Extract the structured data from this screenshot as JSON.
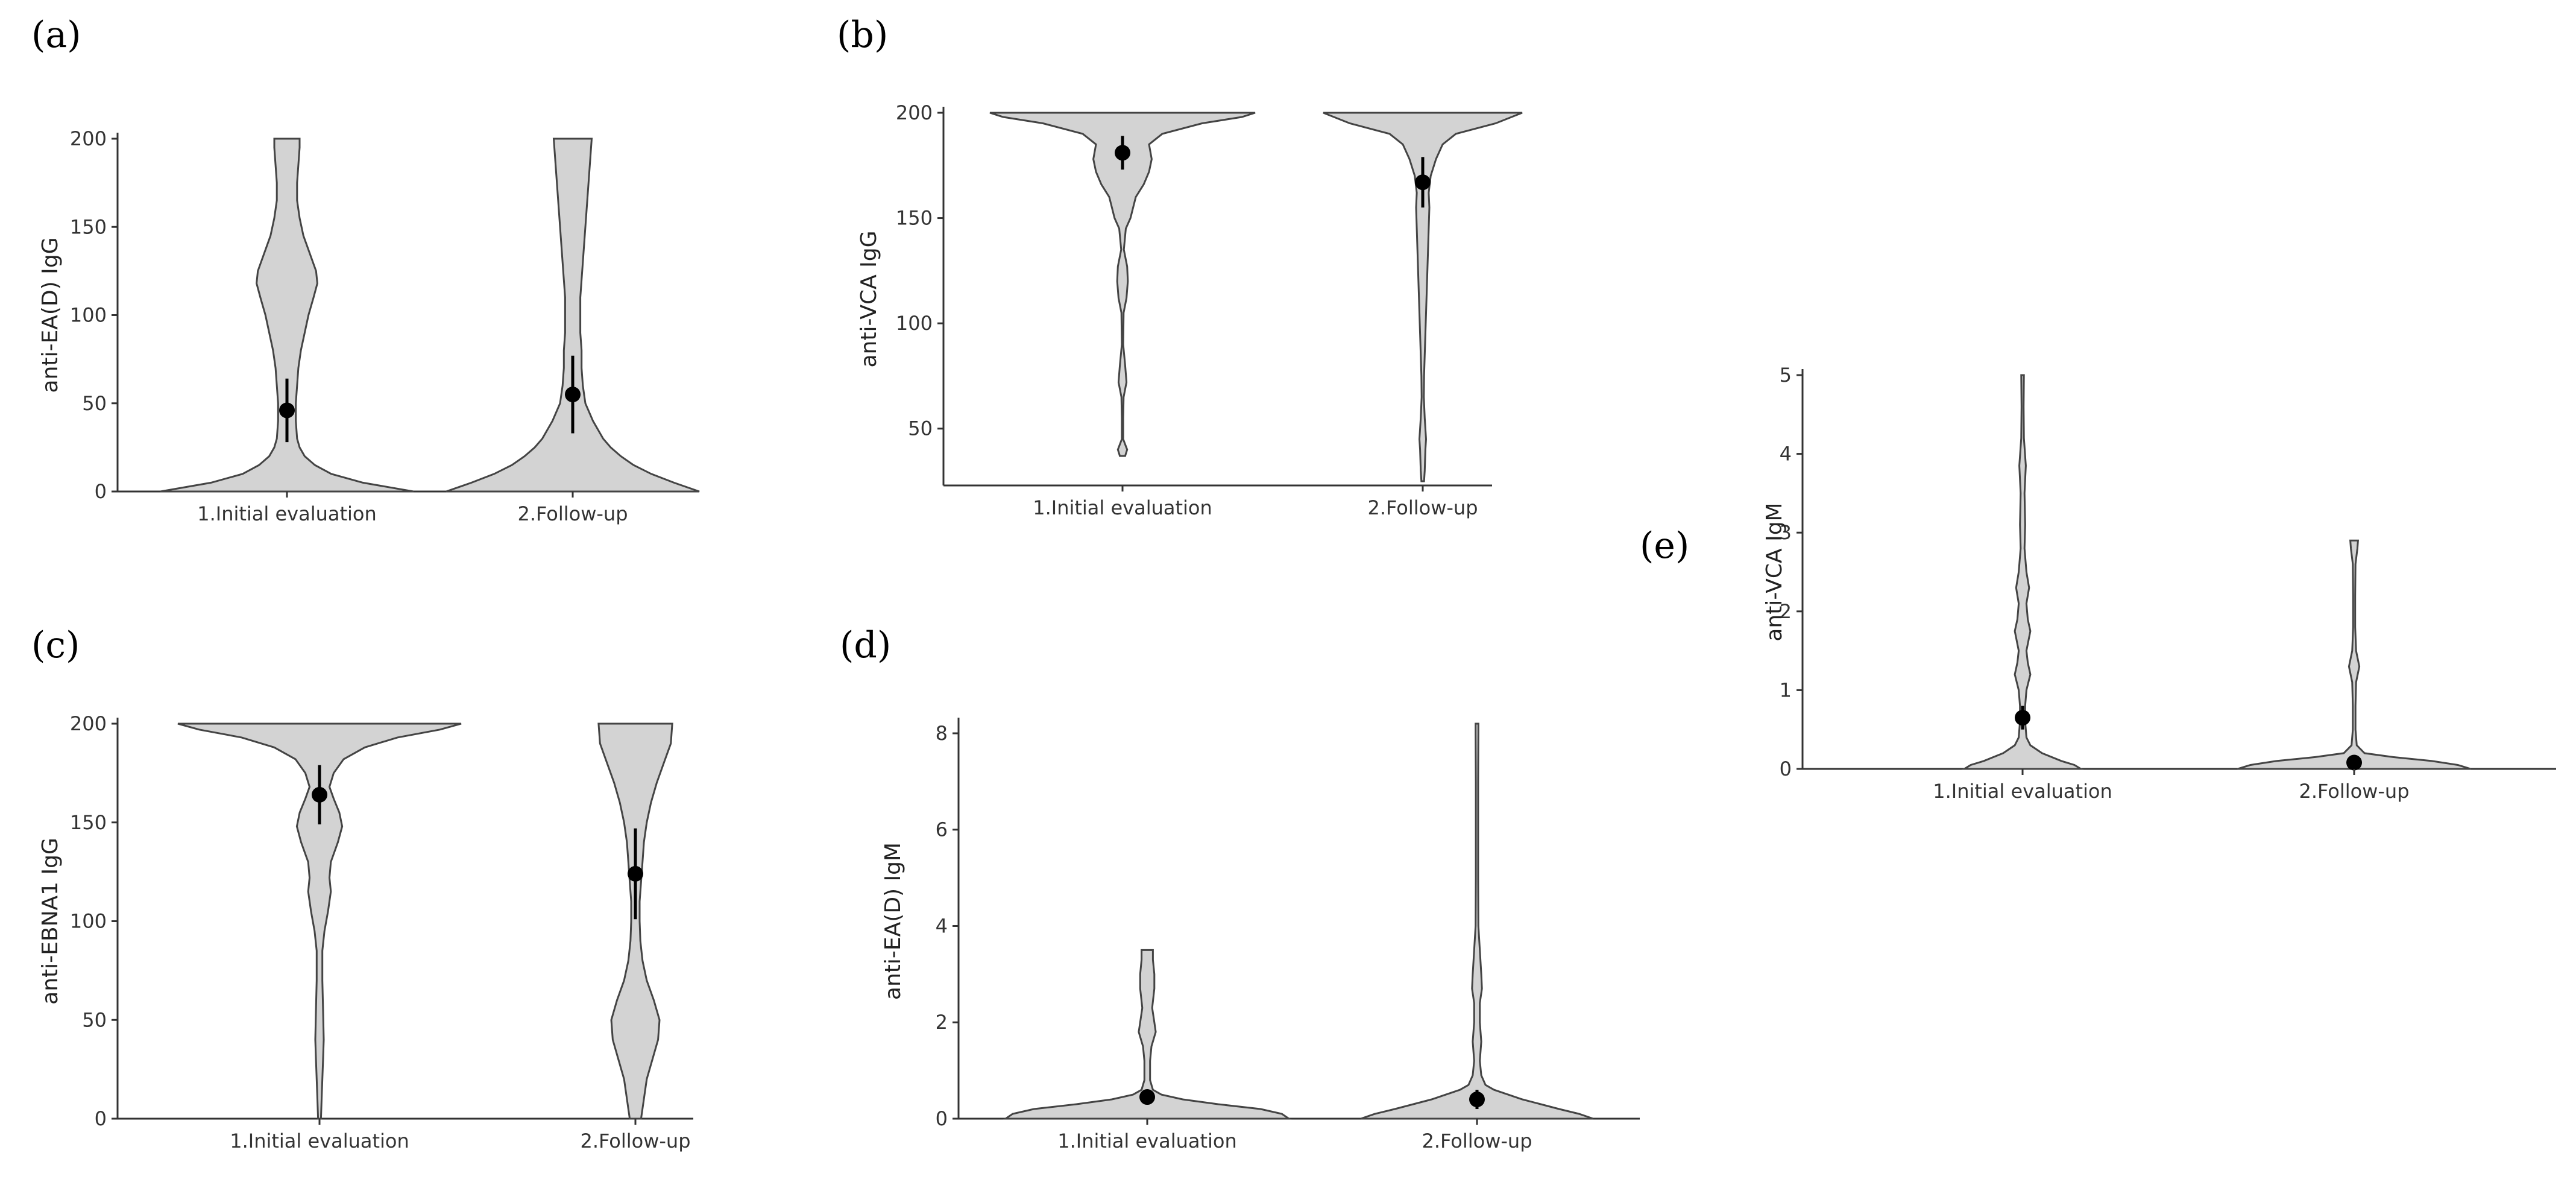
{
  "chart_data": [
    {
      "panel": "(a)",
      "type": "violin",
      "ylabel": "anti-EA(D) IgG",
      "ylim": [
        0,
        200
      ],
      "yticks": [
        0,
        50,
        100,
        150,
        200
      ],
      "categories": [
        "1.Initial evaluation",
        "2.Follow-up"
      ],
      "groups": [
        {
          "name": "1.Initial evaluation",
          "mean": 46,
          "ci": [
            28,
            64
          ],
          "density": [
            [
              0,
              1.0
            ],
            [
              5,
              0.6
            ],
            [
              10,
              0.35
            ],
            [
              15,
              0.22
            ],
            [
              20,
              0.14
            ],
            [
              25,
              0.1
            ],
            [
              30,
              0.08
            ],
            [
              40,
              0.07
            ],
            [
              50,
              0.07
            ],
            [
              60,
              0.08
            ],
            [
              70,
              0.09
            ],
            [
              80,
              0.11
            ],
            [
              90,
              0.14
            ],
            [
              100,
              0.17
            ],
            [
              110,
              0.21
            ],
            [
              118,
              0.24
            ],
            [
              125,
              0.23
            ],
            [
              135,
              0.18
            ],
            [
              145,
              0.13
            ],
            [
              155,
              0.1
            ],
            [
              165,
              0.08
            ],
            [
              175,
              0.08
            ],
            [
              185,
              0.09
            ],
            [
              195,
              0.1
            ],
            [
              200,
              0.1
            ]
          ]
        },
        {
          "name": "2.Follow-up",
          "mean": 55,
          "ci": [
            33,
            77
          ],
          "density": [
            [
              0,
              1.0
            ],
            [
              5,
              0.8
            ],
            [
              10,
              0.62
            ],
            [
              15,
              0.48
            ],
            [
              20,
              0.38
            ],
            [
              25,
              0.3
            ],
            [
              30,
              0.24
            ],
            [
              40,
              0.16
            ],
            [
              50,
              0.1
            ],
            [
              60,
              0.08
            ],
            [
              70,
              0.07
            ],
            [
              80,
              0.07
            ],
            [
              90,
              0.06
            ],
            [
              100,
              0.06
            ],
            [
              110,
              0.06
            ],
            [
              120,
              0.07
            ],
            [
              130,
              0.08
            ],
            [
              140,
              0.09
            ],
            [
              150,
              0.1
            ],
            [
              160,
              0.11
            ],
            [
              170,
              0.12
            ],
            [
              180,
              0.13
            ],
            [
              190,
              0.14
            ],
            [
              200,
              0.15
            ]
          ]
        }
      ]
    },
    {
      "panel": "(b)",
      "type": "violin",
      "ylabel": "anti-VCA IgG",
      "ylim": [
        23,
        200
      ],
      "yticks": [
        50,
        100,
        150,
        200
      ],
      "categories": [
        "1.Initial evaluation",
        "2.Follow-up"
      ],
      "groups": [
        {
          "name": "1.Initial evaluation",
          "mean": 181,
          "ci": [
            173,
            189
          ],
          "density": [
            [
              37,
              0.02
            ],
            [
              40,
              0.035
            ],
            [
              45,
              0.005
            ],
            [
              55,
              0.005
            ],
            [
              65,
              0.008
            ],
            [
              72,
              0.03
            ],
            [
              80,
              0.02
            ],
            [
              90,
              0.005
            ],
            [
              105,
              0.008
            ],
            [
              112,
              0.03
            ],
            [
              120,
              0.04
            ],
            [
              127,
              0.035
            ],
            [
              135,
              0.01
            ],
            [
              145,
              0.025
            ],
            [
              150,
              0.06
            ],
            [
              155,
              0.08
            ],
            [
              160,
              0.1
            ],
            [
              166,
              0.16
            ],
            [
              172,
              0.2
            ],
            [
              178,
              0.22
            ],
            [
              185,
              0.2
            ],
            [
              190,
              0.3
            ],
            [
              195,
              0.6
            ],
            [
              198,
              0.9
            ],
            [
              200,
              1.0
            ]
          ]
        },
        {
          "name": "2.Follow-up",
          "mean": 167,
          "ci": [
            155,
            179
          ],
          "density": [
            [
              25,
              0.01
            ],
            [
              30,
              0.015
            ],
            [
              40,
              0.02
            ],
            [
              45,
              0.025
            ],
            [
              55,
              0.015
            ],
            [
              65,
              0.008
            ],
            [
              75,
              0.01
            ],
            [
              85,
              0.015
            ],
            [
              95,
              0.02
            ],
            [
              105,
              0.025
            ],
            [
              115,
              0.03
            ],
            [
              125,
              0.035
            ],
            [
              135,
              0.04
            ],
            [
              145,
              0.045
            ],
            [
              155,
              0.05
            ],
            [
              162,
              0.045
            ],
            [
              170,
              0.06
            ],
            [
              178,
              0.1
            ],
            [
              185,
              0.15
            ],
            [
              190,
              0.25
            ],
            [
              195,
              0.55
            ],
            [
              200,
              0.75
            ]
          ]
        }
      ]
    },
    {
      "panel": "(c)",
      "type": "violin",
      "ylabel": "anti-EBNA1 IgG",
      "ylim": [
        0,
        200
      ],
      "yticks": [
        0,
        50,
        100,
        150,
        200
      ],
      "categories": [
        "1.Initial evaluation",
        "2.Follow-up"
      ],
      "groups": [
        {
          "name": "1.Initial evaluation",
          "mean": 164,
          "ci": [
            149,
            179
          ],
          "density": [
            [
              0,
              0.01
            ],
            [
              10,
              0.015
            ],
            [
              20,
              0.02
            ],
            [
              30,
              0.025
            ],
            [
              40,
              0.03
            ],
            [
              55,
              0.025
            ],
            [
              70,
              0.02
            ],
            [
              85,
              0.02
            ],
            [
              95,
              0.035
            ],
            [
              105,
              0.06
            ],
            [
              115,
              0.08
            ],
            [
              122,
              0.07
            ],
            [
              130,
              0.08
            ],
            [
              140,
              0.13
            ],
            [
              148,
              0.16
            ],
            [
              155,
              0.14
            ],
            [
              162,
              0.1
            ],
            [
              168,
              0.07
            ],
            [
              175,
              0.1
            ],
            [
              182,
              0.17
            ],
            [
              188,
              0.32
            ],
            [
              193,
              0.55
            ],
            [
              197,
              0.85
            ],
            [
              200,
              1.0
            ]
          ]
        },
        {
          "name": "2.Follow-up",
          "mean": 124,
          "ci": [
            101,
            147
          ],
          "density": [
            [
              0,
              0.04
            ],
            [
              10,
              0.06
            ],
            [
              20,
              0.08
            ],
            [
              30,
              0.12
            ],
            [
              40,
              0.16
            ],
            [
              50,
              0.17
            ],
            [
              60,
              0.13
            ],
            [
              70,
              0.08
            ],
            [
              80,
              0.05
            ],
            [
              90,
              0.035
            ],
            [
              100,
              0.03
            ],
            [
              110,
              0.03
            ],
            [
              120,
              0.04
            ],
            [
              130,
              0.05
            ],
            [
              140,
              0.06
            ],
            [
              150,
              0.08
            ],
            [
              160,
              0.11
            ],
            [
              170,
              0.15
            ],
            [
              180,
              0.2
            ],
            [
              190,
              0.25
            ],
            [
              200,
              0.26
            ]
          ]
        }
      ]
    },
    {
      "panel": "(d)",
      "type": "violin",
      "ylabel": "anti-EA(D) IgM",
      "ylim": [
        0,
        8.2
      ],
      "yticks": [
        0,
        2,
        4,
        6,
        8
      ],
      "categories": [
        "1.Initial evaluation",
        "2.Follow-up"
      ],
      "groups": [
        {
          "name": "1.Initial evaluation",
          "mean": 0.45,
          "ci": [
            0.3,
            0.6
          ],
          "density": [
            [
              0,
              1.0
            ],
            [
              0.1,
              0.95
            ],
            [
              0.2,
              0.8
            ],
            [
              0.3,
              0.5
            ],
            [
              0.4,
              0.25
            ],
            [
              0.5,
              0.1
            ],
            [
              0.6,
              0.04
            ],
            [
              0.8,
              0.02
            ],
            [
              1.0,
              0.02
            ],
            [
              1.2,
              0.02
            ],
            [
              1.5,
              0.03
            ],
            [
              1.8,
              0.06
            ],
            [
              2.0,
              0.05
            ],
            [
              2.3,
              0.035
            ],
            [
              2.7,
              0.05
            ],
            [
              3.0,
              0.05
            ],
            [
              3.3,
              0.04
            ],
            [
              3.5,
              0.04
            ]
          ]
        },
        {
          "name": "2.Follow-up",
          "mean": 0.4,
          "ci": [
            0.2,
            0.6
          ],
          "density": [
            [
              0,
              0.82
            ],
            [
              0.1,
              0.72
            ],
            [
              0.2,
              0.58
            ],
            [
              0.3,
              0.45
            ],
            [
              0.4,
              0.32
            ],
            [
              0.5,
              0.22
            ],
            [
              0.6,
              0.12
            ],
            [
              0.7,
              0.06
            ],
            [
              0.9,
              0.03
            ],
            [
              1.2,
              0.02
            ],
            [
              1.6,
              0.03
            ],
            [
              2.0,
              0.02
            ],
            [
              2.4,
              0.02
            ],
            [
              2.7,
              0.035
            ],
            [
              3.0,
              0.03
            ],
            [
              3.5,
              0.02
            ],
            [
              4.0,
              0.01
            ],
            [
              5.0,
              0.008
            ],
            [
              6.0,
              0.008
            ],
            [
              7.0,
              0.008
            ],
            [
              8.0,
              0.01
            ],
            [
              8.2,
              0.01
            ]
          ]
        }
      ]
    },
    {
      "panel": "(e)",
      "type": "violin",
      "ylabel": "anti-VCA IgM",
      "ylim": [
        0,
        5
      ],
      "yticks": [
        0,
        1,
        2,
        3,
        4,
        5
      ],
      "categories": [
        "1.Initial evaluation",
        "2.Follow-up"
      ],
      "groups": [
        {
          "name": "1.Initial evaluation",
          "mean": 0.65,
          "ci": [
            0.5,
            0.8
          ],
          "density": [
            [
              0,
              0.45
            ],
            [
              0.05,
              0.4
            ],
            [
              0.1,
              0.3
            ],
            [
              0.2,
              0.15
            ],
            [
              0.3,
              0.06
            ],
            [
              0.4,
              0.03
            ],
            [
              0.6,
              0.02
            ],
            [
              0.8,
              0.02
            ],
            [
              1.0,
              0.03
            ],
            [
              1.2,
              0.06
            ],
            [
              1.35,
              0.04
            ],
            [
              1.5,
              0.03
            ],
            [
              1.75,
              0.06
            ],
            [
              1.9,
              0.04
            ],
            [
              2.1,
              0.03
            ],
            [
              2.3,
              0.05
            ],
            [
              2.5,
              0.03
            ],
            [
              2.8,
              0.015
            ],
            [
              3.1,
              0.02
            ],
            [
              3.5,
              0.015
            ],
            [
              3.85,
              0.025
            ],
            [
              4.2,
              0.01
            ],
            [
              4.6,
              0.008
            ],
            [
              5.0,
              0.01
            ]
          ]
        },
        {
          "name": "2.Follow-up",
          "mean": 0.08,
          "ci": [
            0.02,
            0.14
          ],
          "density": [
            [
              0,
              0.9
            ],
            [
              0.05,
              0.8
            ],
            [
              0.1,
              0.6
            ],
            [
              0.15,
              0.3
            ],
            [
              0.2,
              0.08
            ],
            [
              0.3,
              0.02
            ],
            [
              0.5,
              0.01
            ],
            [
              0.8,
              0.01
            ],
            [
              1.1,
              0.015
            ],
            [
              1.3,
              0.04
            ],
            [
              1.5,
              0.015
            ],
            [
              1.8,
              0.008
            ],
            [
              2.2,
              0.008
            ],
            [
              2.6,
              0.01
            ],
            [
              2.8,
              0.025
            ],
            [
              2.9,
              0.03
            ]
          ]
        }
      ]
    }
  ]
}
